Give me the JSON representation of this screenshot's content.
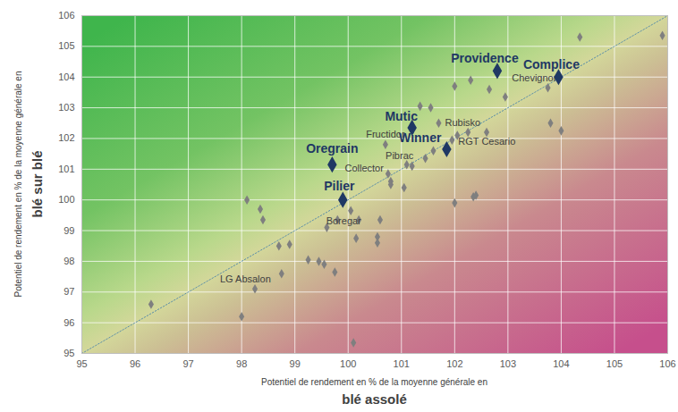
{
  "chart_data": {
    "type": "scatter",
    "xlabel": [
      "Potentiel de rendement en % de la moyenne générale en",
      "blé assolé"
    ],
    "ylabel": [
      "Potentiel de rendement en % de la moyenne générale en",
      "blé sur blé"
    ],
    "xlim": [
      95,
      106
    ],
    "ylim": [
      95,
      106
    ],
    "xticks": [
      95,
      96,
      97,
      98,
      99,
      100,
      101,
      102,
      103,
      104,
      105,
      106
    ],
    "yticks": [
      95,
      96,
      97,
      98,
      99,
      100,
      101,
      102,
      103,
      104,
      105,
      106
    ],
    "grid": true,
    "series": [
      {
        "color": "#7f7f7f",
        "marker": "diamond",
        "x": [
          103.75,
          101.7,
          101.95,
          100.7,
          101.2,
          100.75,
          100.05,
          98.75,
          96.3,
          98.0,
          98.1,
          98.25,
          98.35,
          98.4,
          98.7,
          98.9,
          99.25,
          99.45,
          99.55,
          99.6,
          99.75,
          99.8,
          100.15,
          100.2,
          100.1,
          100.55,
          100.55,
          100.6,
          100.8,
          100.8,
          101.05,
          101.1,
          101.35,
          101.45,
          101.55,
          101.6,
          102.0,
          102.05,
          102.0,
          102.25,
          102.3,
          102.35,
          102.4,
          102.6,
          102.65,
          102.95,
          103.8,
          104.0,
          104.35,
          105.9
        ],
        "y": [
          103.65,
          102.5,
          101.95,
          101.8,
          101.1,
          100.85,
          99.65,
          97.6,
          96.6,
          96.2,
          100.0,
          97.1,
          99.7,
          99.35,
          98.5,
          98.55,
          98.05,
          98.0,
          97.9,
          99.1,
          97.65,
          99.35,
          98.75,
          99.35,
          95.35,
          98.8,
          98.6,
          99.35,
          100.6,
          100.5,
          100.4,
          101.15,
          103.05,
          101.35,
          103.0,
          101.6,
          103.7,
          102.1,
          99.9,
          102.2,
          103.9,
          100.1,
          100.15,
          102.2,
          103.6,
          103.35,
          102.5,
          102.25,
          105.3,
          105.35
        ],
        "labels": [
          "Chevignon",
          "Rubisko",
          "RGT Cesario",
          "Fructidor",
          "Pibrac",
          "Collector",
          "Boregar",
          "LG Absalon",
          null,
          null,
          null,
          null,
          null,
          null,
          null,
          null,
          null,
          null,
          null,
          null,
          null,
          null,
          null,
          null,
          null,
          null,
          null,
          null,
          null,
          null,
          null,
          null,
          null,
          null,
          null,
          null,
          null,
          null,
          null,
          null,
          null,
          null,
          null,
          null,
          null,
          null,
          null,
          null,
          null,
          null
        ]
      },
      {
        "color": "#1f3864",
        "marker": "diamond",
        "x": [
          102.8,
          103.95,
          101.2,
          101.85,
          99.7,
          99.9
        ],
        "y": [
          104.2,
          104.0,
          102.35,
          101.65,
          101.15,
          100.0
        ],
        "labels": [
          "Providence",
          "Complice",
          "Mutic",
          "Winner",
          "Oregrain",
          "Pilier"
        ]
      }
    ]
  }
}
